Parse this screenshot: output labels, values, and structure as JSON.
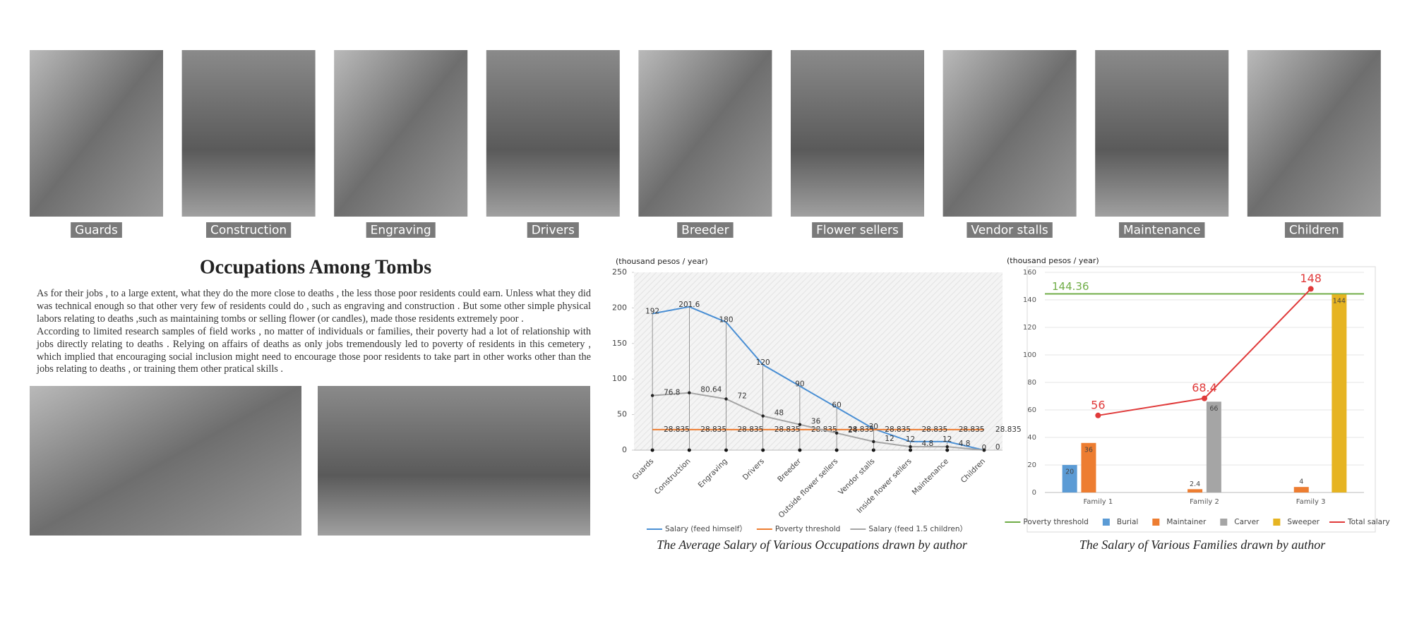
{
  "photos": [
    "Guards",
    "Construction",
    "Engraving",
    "Drivers",
    "Breeder",
    "Flower sellers",
    "Vendor stalls",
    "Maintenance",
    "Children"
  ],
  "article": {
    "title": "Occupations Among Tombs",
    "paragraphs": [
      "As for their jobs , to a large extent, what they do the more close to deaths , the less those poor residents could earn. Unless what they did was technical enough so that other very few of residents could do , such as engraving and construction . But some other simple physical labors relating to deaths ,such as maintaining tombs or selling flower (or candles), made those residents extremely poor .",
      "According to limited research samples of field works , no matter of individuals or families, their poverty had a lot of relationship with jobs directly relating to deaths . Relying on affairs of deaths as only jobs tremendously led to poverty of residents in this cemetery , which implied that encouraging social inclusion might need to encourage those poor residents to take part in other works other than the jobs relating to deaths , or training them other pratical skills ."
    ]
  },
  "chart_data": [
    {
      "type": "line",
      "y_label": "(thousand pesos / year)",
      "caption": "The Average Salary of Various Occupations drawn by author",
      "categories": [
        "Guards",
        "Construction",
        "Engraving",
        "Drivers",
        "Breeder",
        "Outside flower sellers",
        "Vendor stalls",
        "Inside flower sellers",
        "Maintenance",
        "Children"
      ],
      "series": [
        {
          "name": "Salary (feed himself）",
          "color": "#4a8fd4",
          "values": [
            192,
            201.6,
            180,
            120,
            90,
            60,
            30,
            12,
            12,
            0
          ]
        },
        {
          "name": "Poverty threshold",
          "color": "#ed7d31",
          "values": [
            28.835,
            28.835,
            28.835,
            28.835,
            28.835,
            28.835,
            28.835,
            28.835,
            28.835,
            28.835
          ]
        },
        {
          "name": "Salary (feed 1.5 children）",
          "color": "#a5a5a5",
          "marker_color": "#222222",
          "values": [
            76.8,
            80.64,
            72,
            48,
            36,
            24,
            12,
            4.8,
            4.8,
            0
          ]
        }
      ],
      "ylim": [
        0,
        250
      ],
      "yticks": [
        0,
        50,
        100,
        150,
        200,
        250
      ],
      "grid": false
    },
    {
      "type": "bar",
      "y_label": "(thousand pesos / year)",
      "caption": "The Salary of Various Families drawn by author",
      "categories": [
        "Family 1",
        "Family 2",
        "Family 3"
      ],
      "threshold": {
        "name": "Poverty threshold",
        "color": "#70ad47",
        "value": 144.36
      },
      "series": [
        {
          "name": "Burial",
          "color": "#5b9bd5",
          "values": [
            20,
            null,
            null
          ]
        },
        {
          "name": "Maintainer",
          "color": "#ed7d31",
          "values": [
            36,
            2.4,
            4
          ]
        },
        {
          "name": "Carver",
          "color": "#a5a5a5",
          "values": [
            null,
            66,
            null
          ]
        },
        {
          "name": "Sweeper",
          "color": "#e6b422",
          "values": [
            null,
            null,
            144
          ]
        },
        {
          "name": "Total salary",
          "color": "#e03a3a",
          "type": "line",
          "values": [
            56,
            68.4,
            148
          ]
        }
      ],
      "ylim": [
        0,
        160
      ],
      "yticks": [
        0,
        20,
        40,
        60,
        80,
        100,
        120,
        140,
        160
      ],
      "grid": true
    }
  ]
}
